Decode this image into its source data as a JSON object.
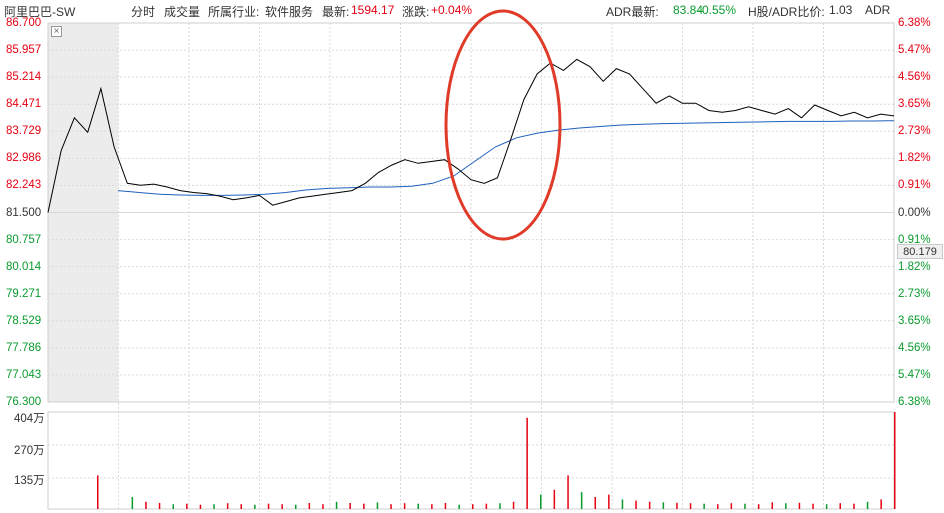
{
  "header": {
    "stock_name": "阿里巴巴-SW",
    "tab_minute": "分时",
    "tab_volume": "成交量",
    "industry_label": "所属行业:",
    "industry_value": "软件服务",
    "latest_label": "最新:",
    "latest_value": "1594.17",
    "change_label": "涨跌:",
    "change_value": "+0.04%",
    "adr_latest_label": "ADR最新:",
    "adr_latest_value": "83.84",
    "adr_change_value": "-0.55%",
    "h_adr_ratio_label": "H股/ADR比价:",
    "h_adr_ratio_value": "1.03",
    "adr_label": "ADR"
  },
  "crosshair_value": "80.179",
  "colors": {
    "price_line": "#000000",
    "avg_line": "#1f5fbf",
    "up": "#e60012",
    "down": "#0a9b2e",
    "highlight_circle": "#e03a28",
    "grid": "#d9d9d9",
    "premarket_shade": "#ececec"
  },
  "chart_data": {
    "type": "line",
    "title": "",
    "base_price": 81.5,
    "ylim": [
      76.3,
      86.7
    ],
    "y_ticks_left": [
      "86.700",
      "85.957",
      "85.214",
      "84.471",
      "83.729",
      "82.986",
      "82.243",
      "81.500",
      "80.757",
      "80.014",
      "79.271",
      "78.529",
      "77.786",
      "77.043",
      "76.300"
    ],
    "y_ticks_right": [
      "6.38%",
      "5.47%",
      "4.56%",
      "3.65%",
      "2.73%",
      "1.82%",
      "0.91%",
      "0.00%",
      "0.91%",
      "1.82%",
      "2.73%",
      "3.65%",
      "4.56%",
      "5.47%",
      "6.38%"
    ],
    "y_ticks_right_color": [
      "up",
      "up",
      "up",
      "up",
      "up",
      "up",
      "up",
      "neutral",
      "down",
      "down",
      "down",
      "down",
      "down",
      "down",
      "down"
    ],
    "volume_ticks": [
      "404万",
      "270万",
      "135万"
    ],
    "volume_max": 404,
    "series": [
      {
        "role": "price",
        "values": [
          81.5,
          83.2,
          84.1,
          83.7,
          84.9,
          83.3,
          82.3,
          82.25,
          82.28,
          82.2,
          82.1,
          82.05,
          82.02,
          81.95,
          81.85,
          81.9,
          81.97,
          81.7,
          81.8,
          81.9,
          81.95,
          82.0,
          82.05,
          82.1,
          82.3,
          82.6,
          82.8,
          82.95,
          82.85,
          82.9,
          82.95,
          82.7,
          82.4,
          82.3,
          82.45,
          83.5,
          84.6,
          85.3,
          85.6,
          85.4,
          85.7,
          85.5,
          85.1,
          85.45,
          85.3,
          84.9,
          84.5,
          84.7,
          84.5,
          84.5,
          84.3,
          84.25,
          84.3,
          84.4,
          84.3,
          84.2,
          84.35,
          84.1,
          84.45,
          84.3,
          84.15,
          84.25,
          84.1,
          84.2,
          84.15
        ]
      },
      {
        "role": "average",
        "values": [
          82.1,
          82.05,
          82.0,
          81.98,
          81.97,
          81.97,
          81.98,
          82.0,
          82.05,
          82.12,
          82.16,
          82.18,
          82.2,
          82.2,
          82.22,
          82.3,
          82.5,
          82.9,
          83.3,
          83.55,
          83.68,
          83.76,
          83.82,
          83.86,
          83.9,
          83.92,
          83.94,
          83.95,
          83.96,
          83.97,
          83.98,
          83.99,
          84.0,
          84.0,
          84.0,
          84.01,
          84.01,
          84.02
        ]
      }
    ],
    "volume": [
      140,
      50,
      30,
      25,
      20,
      22,
      18,
      20,
      24,
      20,
      18,
      22,
      20,
      18,
      25,
      20,
      30,
      25,
      22,
      28,
      20,
      24,
      22,
      20,
      25,
      18,
      20,
      22,
      24,
      30,
      380,
      60,
      80,
      140,
      70,
      50,
      60,
      40,
      35,
      30,
      28,
      26,
      24,
      22,
      20,
      24,
      22,
      20,
      28,
      24,
      26,
      22,
      20,
      24,
      22,
      30,
      40,
      404
    ]
  }
}
